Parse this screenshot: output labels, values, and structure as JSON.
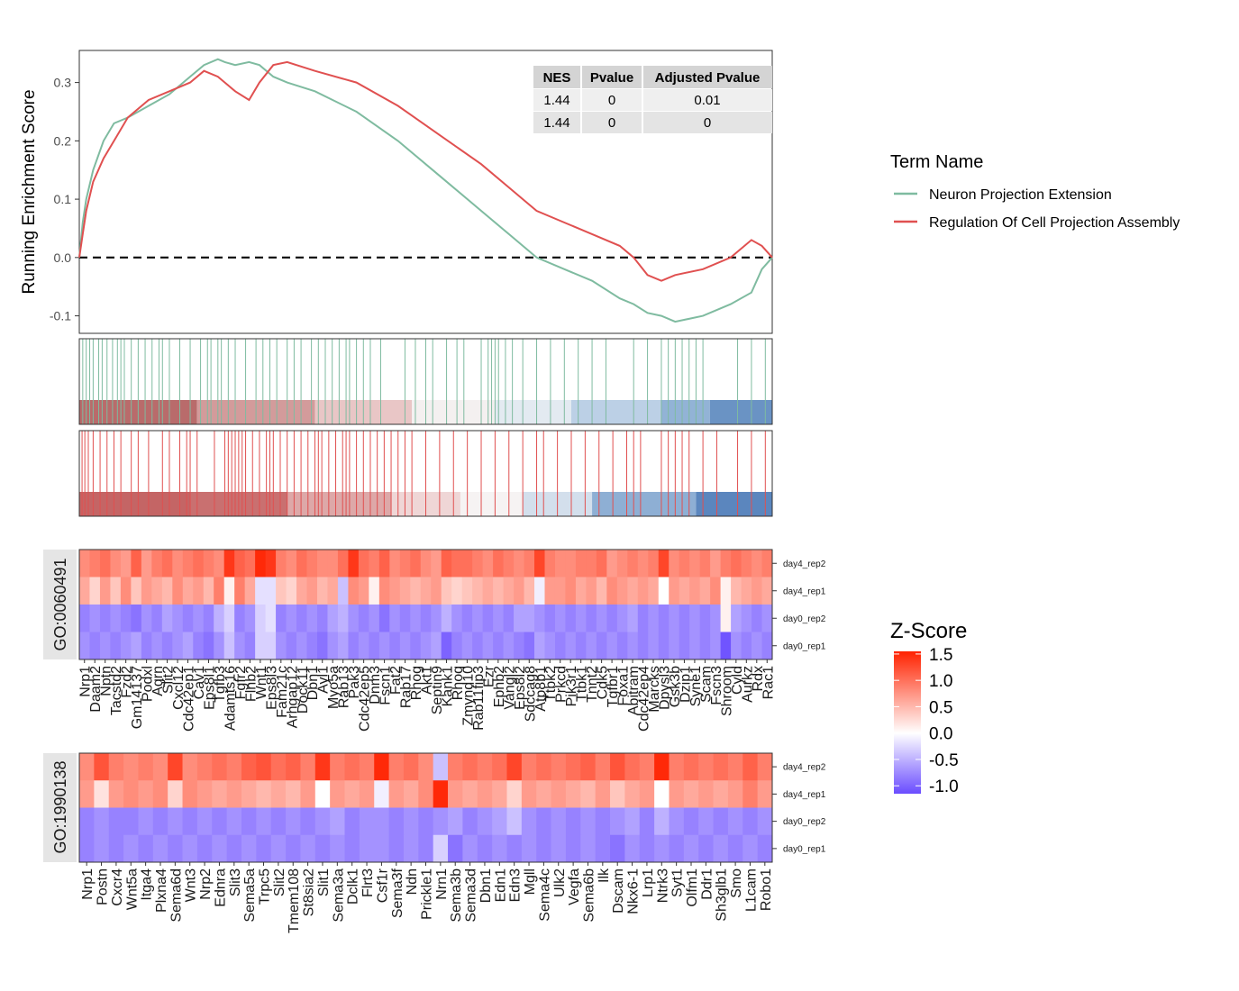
{
  "chart_data": [
    {
      "type": "line",
      "ylabel": "Running Enrichment Score",
      "ylim": [
        -0.13,
        0.355
      ],
      "y_ticks": [
        -0.1,
        0.0,
        0.1,
        0.2,
        0.3
      ],
      "y_tick_labels": [
        "-0.1",
        "0.0",
        "0.1",
        "0.2",
        "0.3"
      ],
      "reference_line": 0.0,
      "legend": {
        "title": "Term Name",
        "placement": "right",
        "items": [
          "Neuron Projection Extension",
          "Regulation Of Cell Projection Assembly"
        ]
      },
      "stats_table": {
        "headers": [
          "NES",
          "Pvalue",
          "Adjusted Pvalue"
        ],
        "rows": [
          [
            "1.44",
            "0",
            "0.01"
          ],
          [
            "1.44",
            "0",
            "0"
          ]
        ]
      },
      "x": [
        0,
        0.005,
        0.01,
        0.02,
        0.035,
        0.05,
        0.07,
        0.1,
        0.13,
        0.16,
        0.18,
        0.2,
        0.21,
        0.225,
        0.245,
        0.26,
        0.28,
        0.3,
        0.34,
        0.4,
        0.46,
        0.52,
        0.58,
        0.62,
        0.64,
        0.66,
        0.7,
        0.74,
        0.78,
        0.8,
        0.82,
        0.84,
        0.86,
        0.9,
        0.94,
        0.97,
        0.985,
        1.0
      ],
      "series": [
        {
          "name": "Neuron Projection Extension",
          "color": "#7FBBA0",
          "values": [
            0,
            0.06,
            0.1,
            0.15,
            0.2,
            0.23,
            0.24,
            0.26,
            0.28,
            0.31,
            0.33,
            0.34,
            0.335,
            0.33,
            0.335,
            0.33,
            0.31,
            0.3,
            0.285,
            0.25,
            0.2,
            0.14,
            0.08,
            0.04,
            0.02,
            0.0,
            -0.02,
            -0.04,
            -0.07,
            -0.08,
            -0.095,
            -0.1,
            -0.11,
            -0.1,
            -0.08,
            -0.06,
            -0.02,
            0.0
          ]
        },
        {
          "name": "Regulation Of Cell Projection Assembly",
          "color": "#E05050",
          "values": [
            0,
            0.04,
            0.08,
            0.13,
            0.17,
            0.2,
            0.24,
            0.27,
            0.285,
            0.3,
            0.32,
            0.31,
            0.3,
            0.285,
            0.27,
            0.3,
            0.33,
            0.335,
            0.32,
            0.3,
            0.26,
            0.21,
            0.16,
            0.12,
            0.1,
            0.08,
            0.06,
            0.04,
            0.02,
            0.0,
            -0.03,
            -0.04,
            -0.03,
            -0.02,
            0.0,
            0.03,
            0.02,
            0.0
          ]
        }
      ]
    },
    {
      "type": "heatmap",
      "panel_label": "GO:0060491",
      "rows": [
        "day4_rep2",
        "day4_rep1",
        "day0_rep2",
        "day0_rep1"
      ],
      "columns": [
        "Nrp1",
        "Daam2",
        "Nptn",
        "Tacstd2",
        "Fzd2",
        "Gm14137",
        "Podxl",
        "Agrn",
        "Slit2",
        "Cxcl12",
        "Cdc42ep1",
        "Cav1",
        "Eps8l1",
        "Tgfb3",
        "Adamts16",
        "Fgfr2",
        "Flnb2",
        "Wnt1",
        "Eps8l3",
        "Fam21c",
        "Arhgap12",
        "Dock11",
        "Dbn1",
        "Ayl1",
        "Myo5a",
        "Rab13",
        "Pak3",
        "Cdc42ep5",
        "Dnm3",
        "Fscn1",
        "Fat2",
        "Rab17",
        "Rhog",
        "Akt1",
        "Septin9",
        "Kank1",
        "Rhoq",
        "Zmynd10",
        "Rab11fip3",
        "Ezr",
        "Ephb2",
        "Vangl2",
        "Eps8l2",
        "Sdccag8",
        "Atp8b1",
        "Ttbk2",
        "Prkcd",
        "Pik3r1",
        "Ttbk1",
        "Tnnt2",
        "Cdk5",
        "Tgfbr1",
        "Foxa1",
        "Abitram",
        "Cdc42ep4",
        "Marcks",
        "Dpysl3",
        "Gsk3b",
        "Dzip1",
        "Syne1",
        "Scam",
        "Fscn3",
        "Shroom",
        "Cyld",
        "Aurkz",
        "Rdx",
        "Rac1"
      ],
      "values": [
        [
          0.8,
          0.9,
          1.0,
          0.8,
          0.7,
          1.1,
          0.7,
          0.9,
          1.0,
          0.8,
          0.9,
          1.0,
          0.9,
          0.8,
          1.4,
          1.1,
          1.0,
          1.5,
          1.4,
          0.9,
          0.8,
          1.0,
          0.9,
          0.8,
          0.8,
          1.0,
          1.4,
          1.0,
          0.9,
          1.1,
          0.8,
          0.9,
          1.0,
          0.8,
          0.7,
          1.1,
          1.0,
          1.0,
          0.9,
          0.8,
          1.0,
          0.9,
          0.8,
          0.9,
          1.3,
          0.9,
          0.8,
          0.8,
          0.9,
          0.9,
          1.0,
          0.7,
          0.8,
          0.9,
          0.8,
          0.9,
          1.3,
          0.8,
          0.9,
          0.8,
          0.9,
          0.7,
          0.9,
          1.0,
          0.9,
          0.8,
          0.9
        ],
        [
          0.6,
          0.3,
          0.7,
          0.4,
          0.8,
          0.4,
          0.7,
          0.6,
          0.5,
          0.8,
          0.6,
          0.7,
          0.5,
          0.9,
          0.1,
          0.9,
          0.6,
          -0.2,
          -0.2,
          0.4,
          0.3,
          0.6,
          0.7,
          0.5,
          0.6,
          -0.4,
          0.8,
          0.7,
          0.1,
          0.8,
          0.7,
          0.6,
          0.5,
          0.6,
          0.7,
          0.4,
          0.3,
          0.4,
          0.5,
          0.6,
          0.5,
          0.6,
          0.7,
          0.5,
          -0.1,
          0.7,
          0.7,
          0.8,
          0.6,
          0.7,
          0.5,
          0.8,
          0.7,
          0.6,
          0.7,
          0.6,
          0.0,
          0.7,
          0.6,
          0.7,
          0.6,
          0.8,
          0.1,
          0.5,
          0.6,
          0.7,
          0.6
        ],
        [
          -0.8,
          -0.7,
          -0.8,
          -0.7,
          -0.8,
          -0.9,
          -0.7,
          -0.8,
          -0.6,
          -0.7,
          -0.8,
          -0.7,
          -0.8,
          -0.5,
          -0.3,
          -0.8,
          -0.7,
          -0.3,
          -0.2,
          -0.8,
          -0.7,
          -0.8,
          -0.7,
          -0.8,
          -0.6,
          -0.5,
          -0.7,
          -0.8,
          -0.7,
          -0.9,
          -0.7,
          -0.8,
          -0.7,
          -0.8,
          -0.7,
          -0.5,
          -0.7,
          -0.8,
          -0.7,
          -0.8,
          -0.7,
          -0.8,
          -0.6,
          -0.6,
          -0.7,
          -0.8,
          -0.7,
          -0.8,
          -0.7,
          -0.8,
          -0.7,
          -0.8,
          -0.7,
          -0.6,
          -0.8,
          -0.7,
          -0.8,
          -0.7,
          -0.8,
          -0.7,
          -0.8,
          -0.7,
          0.1,
          -0.6,
          -0.7,
          -0.8,
          -0.7
        ],
        [
          -0.7,
          -0.8,
          -0.7,
          -0.8,
          -0.7,
          -0.6,
          -0.8,
          -0.7,
          -0.8,
          -0.7,
          -0.6,
          -0.8,
          -0.9,
          -0.7,
          -0.4,
          -0.7,
          -0.8,
          -0.3,
          -0.3,
          -0.7,
          -0.8,
          -0.7,
          -0.8,
          -0.9,
          -0.7,
          -0.6,
          -0.8,
          -0.7,
          -0.8,
          -0.7,
          -0.8,
          -0.7,
          -0.8,
          -0.7,
          -0.6,
          -1.0,
          -0.8,
          -0.7,
          -0.8,
          -0.7,
          -0.8,
          -0.7,
          -0.8,
          -0.9,
          -0.6,
          -0.7,
          -0.8,
          -0.7,
          -0.8,
          -0.7,
          -0.8,
          -0.7,
          -0.8,
          -0.7,
          -0.8,
          -0.7,
          -0.8,
          -0.7,
          -0.8,
          -0.7,
          -0.8,
          -0.7,
          -1.1,
          -0.7,
          -0.8,
          -0.7,
          -0.8
        ]
      ]
    },
    {
      "type": "heatmap",
      "panel_label": "GO:1990138",
      "rows": [
        "day4_rep2",
        "day4_rep1",
        "day0_rep2",
        "day0_rep1"
      ],
      "columns": [
        "Nrp1",
        "Postn",
        "Cxcr4",
        "Wnt5a",
        "Itga4",
        "Plxna4",
        "Sema6d",
        "Wnt3",
        "Nrp2",
        "Ednra",
        "Slit3",
        "Sema5a",
        "Trpc5",
        "Slit2",
        "Tmem108",
        "St8sia2",
        "Slit1",
        "Sema3a",
        "Dclk1",
        "Flrt3",
        "Csf1r",
        "Sema3f",
        "Ndn",
        "Prickle1",
        "Nrn1",
        "Sema3b",
        "Sema3d",
        "Dbn1",
        "Edn1",
        "Edn3",
        "Mgll",
        "Sema4c",
        "Ulk2",
        "Vegfa",
        "Sema6b",
        "Ilk",
        "Dscam",
        "Nkx6-1",
        "Lrp1",
        "Ntrk3",
        "Syt1",
        "Olfm1",
        "Ddr1",
        "Sh3glb1",
        "Smo",
        "L1cam",
        "Robo1"
      ],
      "values": [
        [
          0.8,
          1.2,
          0.9,
          0.8,
          0.9,
          0.8,
          1.3,
          0.8,
          0.9,
          1.0,
          0.9,
          1.1,
          1.2,
          1.0,
          1.1,
          0.9,
          1.4,
          0.9,
          1.0,
          0.9,
          1.5,
          0.9,
          1.0,
          0.8,
          -0.4,
          0.9,
          1.0,
          0.9,
          1.0,
          1.3,
          0.9,
          1.0,
          0.9,
          1.0,
          1.1,
          0.9,
          1.2,
          1.0,
          0.9,
          1.5,
          0.9,
          1.0,
          0.9,
          1.0,
          0.9,
          1.1,
          0.9
        ],
        [
          0.7,
          0.2,
          0.7,
          0.8,
          0.7,
          0.8,
          0.3,
          0.8,
          0.7,
          0.6,
          0.7,
          0.6,
          0.5,
          0.6,
          0.5,
          0.7,
          0.0,
          0.7,
          0.6,
          0.7,
          -0.1,
          0.7,
          0.6,
          0.8,
          1.5,
          0.7,
          0.6,
          0.7,
          0.6,
          0.3,
          0.7,
          0.6,
          0.7,
          0.6,
          0.5,
          0.7,
          0.4,
          0.6,
          0.7,
          0.0,
          0.7,
          0.6,
          0.7,
          0.6,
          0.7,
          0.9,
          0.7
        ],
        [
          -0.8,
          -0.7,
          -0.8,
          -0.8,
          -0.7,
          -0.8,
          -0.7,
          -0.8,
          -0.7,
          -0.8,
          -0.7,
          -0.8,
          -0.7,
          -0.8,
          -0.7,
          -0.8,
          -0.7,
          -0.6,
          -0.8,
          -0.7,
          -0.7,
          -0.8,
          -0.7,
          -0.8,
          -0.7,
          -0.6,
          -0.8,
          -0.7,
          -0.6,
          -0.4,
          -0.7,
          -0.8,
          -0.7,
          -0.8,
          -0.7,
          -0.8,
          -0.7,
          -0.6,
          -0.8,
          -0.5,
          -0.7,
          -0.8,
          -0.7,
          -0.8,
          -0.7,
          -0.8,
          -0.7
        ],
        [
          -0.8,
          -0.7,
          -0.8,
          -0.7,
          -0.8,
          -0.7,
          -0.8,
          -0.7,
          -0.8,
          -0.7,
          -0.8,
          -0.7,
          -0.8,
          -0.7,
          -0.8,
          -0.7,
          -0.8,
          -0.7,
          -0.8,
          -0.7,
          -0.7,
          -0.8,
          -0.7,
          -0.8,
          -0.3,
          -0.9,
          -0.7,
          -0.8,
          -0.7,
          -0.8,
          -0.7,
          -0.8,
          -0.7,
          -0.8,
          -0.7,
          -0.8,
          -0.9,
          -0.7,
          -0.8,
          -0.7,
          -0.8,
          -0.7,
          -0.8,
          -0.7,
          -0.8,
          -0.7,
          -0.8
        ]
      ]
    }
  ],
  "colorbar": {
    "title": "Z-Score",
    "range": [
      -1.15,
      1.55
    ],
    "ticks": [
      1.5,
      1.0,
      0.5,
      0.0,
      -0.5,
      -1.0
    ],
    "tick_labels": [
      "1.5",
      "1.0",
      "0.5",
      "0.0",
      "-0.5",
      "-1.0"
    ],
    "low_color": "#6A4CFF",
    "mid_color": "#FFFFFF",
    "high_color": "#FF2200"
  },
  "rank_strips": [
    {
      "term": "Neuron Projection Extension",
      "line_color": "#7FBBA0",
      "hit_positions": [
        0.005,
        0.01,
        0.015,
        0.02,
        0.028,
        0.033,
        0.04,
        0.048,
        0.055,
        0.06,
        0.065,
        0.075,
        0.085,
        0.095,
        0.105,
        0.115,
        0.12,
        0.13,
        0.145,
        0.16,
        0.175,
        0.185,
        0.19,
        0.2,
        0.205,
        0.215,
        0.225,
        0.24,
        0.255,
        0.265,
        0.275,
        0.285,
        0.3,
        0.31,
        0.32,
        0.335,
        0.345,
        0.355,
        0.365,
        0.375,
        0.385,
        0.39,
        0.4,
        0.41,
        0.42,
        0.435,
        0.47,
        0.485,
        0.5,
        0.51,
        0.53,
        0.545,
        0.555,
        0.58,
        0.59,
        0.595,
        0.6,
        0.605,
        0.615,
        0.625,
        0.64,
        0.66,
        0.68,
        0.7,
        0.72,
        0.74,
        0.76,
        0.8,
        0.82,
        0.84,
        0.85,
        0.86,
        0.87,
        0.88,
        0.89,
        0.9,
        0.95,
        0.97,
        0.99
      ],
      "bands": [
        {
          "start": 0,
          "end": 0.17,
          "color": "#B96B6B"
        },
        {
          "start": 0.17,
          "end": 0.34,
          "color": "#D39B9B"
        },
        {
          "start": 0.34,
          "end": 0.48,
          "color": "#E9C6C6"
        },
        {
          "start": 0.48,
          "end": 0.6,
          "color": "#F4F0F0"
        },
        {
          "start": 0.6,
          "end": 0.71,
          "color": "#E3EAF1"
        },
        {
          "start": 0.71,
          "end": 0.84,
          "color": "#BCD0E6"
        },
        {
          "start": 0.84,
          "end": 0.91,
          "color": "#92B3D6"
        },
        {
          "start": 0.91,
          "end": 1.0,
          "color": "#6A93C4"
        }
      ]
    },
    {
      "term": "Regulation Of Cell Projection Assembly",
      "line_color": "#E05050",
      "hit_positions": [
        0.004,
        0.008,
        0.013,
        0.02,
        0.03,
        0.04,
        0.05,
        0.06,
        0.075,
        0.085,
        0.1,
        0.12,
        0.13,
        0.145,
        0.155,
        0.16,
        0.17,
        0.195,
        0.21,
        0.215,
        0.22,
        0.225,
        0.23,
        0.235,
        0.24,
        0.25,
        0.26,
        0.27,
        0.275,
        0.28,
        0.29,
        0.3,
        0.31,
        0.32,
        0.33,
        0.34,
        0.345,
        0.35,
        0.36,
        0.37,
        0.38,
        0.385,
        0.39,
        0.4,
        0.41,
        0.42,
        0.43,
        0.44,
        0.45,
        0.46,
        0.47,
        0.48,
        0.5,
        0.52,
        0.54,
        0.56,
        0.58,
        0.6,
        0.62,
        0.64,
        0.66,
        0.67,
        0.69,
        0.71,
        0.73,
        0.75,
        0.77,
        0.79,
        0.8,
        0.81,
        0.84,
        0.85,
        0.86,
        0.87,
        0.88,
        0.9,
        0.92,
        0.95,
        0.97,
        0.99
      ],
      "bands": [
        {
          "start": 0,
          "end": 0.16,
          "color": "#C46565"
        },
        {
          "start": 0.16,
          "end": 0.3,
          "color": "#C97070"
        },
        {
          "start": 0.3,
          "end": 0.45,
          "color": "#DDA8A8"
        },
        {
          "start": 0.45,
          "end": 0.55,
          "color": "#EFD6D6"
        },
        {
          "start": 0.55,
          "end": 0.64,
          "color": "#F6F3F3"
        },
        {
          "start": 0.64,
          "end": 0.74,
          "color": "#D3DFEC"
        },
        {
          "start": 0.74,
          "end": 0.89,
          "color": "#8EAFD4"
        },
        {
          "start": 0.89,
          "end": 1.0,
          "color": "#5B86BE"
        }
      ]
    }
  ]
}
